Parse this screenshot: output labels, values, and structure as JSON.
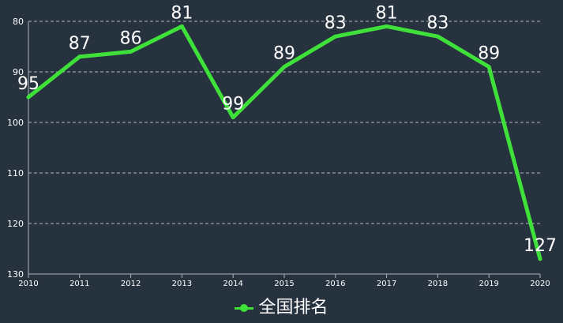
{
  "colors": {
    "background": "#27323f",
    "line": "#3fe03a",
    "grid": "#aeb4bb",
    "axis_text": "#ffffff",
    "label_text": "#ffffff"
  },
  "legend": {
    "label": "全国排名",
    "icon": "line-dot-icon"
  },
  "chart_data": {
    "type": "line",
    "x": [
      "2010",
      "2011",
      "2012",
      "2013",
      "2014",
      "2015",
      "2016",
      "2017",
      "2018",
      "2019",
      "2020"
    ],
    "series": [
      {
        "name": "全国排名",
        "values": [
          95,
          87,
          86,
          81,
          99,
          89,
          83,
          81,
          83,
          89,
          127
        ],
        "data_labels": [
          "95",
          "87",
          "86",
          "81",
          "99",
          "89",
          "83",
          "81",
          "83",
          "89",
          "127"
        ]
      }
    ],
    "ylim": [
      80,
      130
    ],
    "y_inverted": true,
    "y_ticks": [
      "80",
      "90",
      "100",
      "110",
      "120",
      "130"
    ],
    "grid": true,
    "legend_position": "bottom-center",
    "title": "",
    "xlabel": "",
    "ylabel": ""
  }
}
